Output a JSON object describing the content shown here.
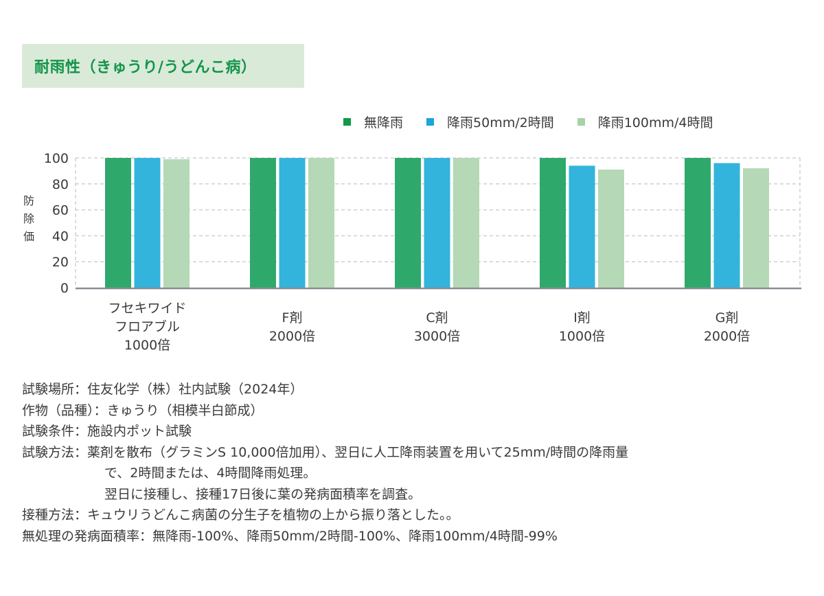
{
  "title": "耐雨性（きゅうり/うどんこ病）",
  "chart_data": {
    "type": "bar",
    "title": "耐雨性（きゅうり/うどんこ病）",
    "xlabel": "",
    "ylabel": "防除価",
    "ylim": [
      0,
      100
    ],
    "yticks": [
      0,
      20,
      40,
      60,
      80,
      100
    ],
    "grid": true,
    "legend_position": "top-right",
    "categories": [
      "フセキワイド\nフロアブル\n1000倍",
      "F剤\n2000倍",
      "C剤\n3000倍",
      "I剤\n1000倍",
      "G剤\n2000倍"
    ],
    "series": [
      {
        "name": "無降雨",
        "color": "#2fa86b",
        "legend_color": "#109a4a",
        "values": [
          100,
          100,
          100,
          100,
          100
        ]
      },
      {
        "name": "降雨50mm/2時間",
        "color": "#33b4dc",
        "legend_color": "#1aa5db",
        "values": [
          100,
          100,
          100,
          94,
          96
        ]
      },
      {
        "name": "降雨100mm/4時間",
        "color": "#b5d8b6",
        "legend_color": "#a5d2a6",
        "values": [
          99,
          100,
          100,
          91,
          92
        ]
      }
    ]
  },
  "notes": [
    {
      "label": "試験場所：",
      "text": "住友化学（株）社内試験（2024年）"
    },
    {
      "label": "作物（品種）：",
      "text": "きゅうり（相模半白節成）"
    },
    {
      "label": "試験条件：",
      "text": "施設内ポット試験"
    },
    {
      "label": "試験方法：",
      "text": "薬剤を散布（グラミンS 10,000倍加用）、翌日に人工降雨装置を用いて25mm/時間の降雨量"
    },
    {
      "label": "",
      "text": "で、2時間または、4時間降雨処理。"
    },
    {
      "label": "",
      "text": "翌日に接種し、接種17日後に葉の発病面積率を調査。"
    },
    {
      "label": "接種方法：",
      "text": "キュウリうどんこ病菌の分生子を植物の上から振り落とした。。"
    },
    {
      "label": "無処理の発病面積率：",
      "text": "無降雨-100%、降雨50mm/2時間-100%、降雨100mm/4時間-99%"
    }
  ]
}
